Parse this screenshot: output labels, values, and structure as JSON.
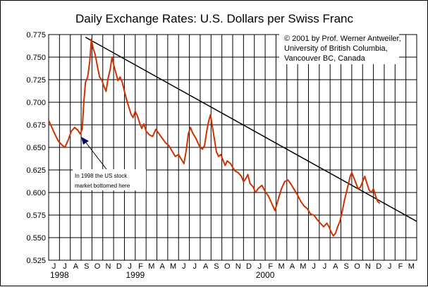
{
  "chart_data": {
    "type": "line",
    "title": "Daily Exchange Rates: U.S. Dollars per Swiss Franc",
    "credit": [
      "© 2001 by Prof. Werner Antweiler,",
      "University of British Columbia,",
      "Vancouver BC, Canada"
    ],
    "annotation": [
      "In 1998 the US stock",
      "market bottomed here"
    ],
    "ylim": [
      0.525,
      0.775
    ],
    "yticks": [
      "0.525",
      "0.550",
      "0.575",
      "0.600",
      "0.625",
      "0.650",
      "0.675",
      "0.700",
      "0.725",
      "0.750",
      "0.775"
    ],
    "month_labels": [
      "J",
      "J",
      "A",
      "S",
      "O",
      "N",
      "D",
      "J",
      "F",
      "M",
      "A",
      "M",
      "J",
      "J",
      "A",
      "S",
      "O",
      "N",
      "D",
      "J",
      "F",
      "M",
      "A",
      "M",
      "J",
      "J",
      "A",
      "S",
      "O",
      "N",
      "D",
      "J",
      "F",
      "M"
    ],
    "year_labels": [
      {
        "label": "1998",
        "month_index": 0
      },
      {
        "label": "1999",
        "month_index": 7
      },
      {
        "label": "2000",
        "month_index": 19
      }
    ],
    "series_color": "#cc3300",
    "trend_line": {
      "from": {
        "month": 3.4,
        "value": 0.772
      },
      "to": {
        "month": 34.0,
        "value": 0.568
      }
    },
    "series": [
      {
        "name": "USD per CHF",
        "points": [
          [
            0.0,
            0.68
          ],
          [
            0.3,
            0.672
          ],
          [
            0.6,
            0.664
          ],
          [
            0.9,
            0.657
          ],
          [
            1.2,
            0.653
          ],
          [
            1.5,
            0.65
          ],
          [
            1.8,
            0.658
          ],
          [
            2.1,
            0.668
          ],
          [
            2.4,
            0.672
          ],
          [
            2.7,
            0.669
          ],
          [
            2.9,
            0.665
          ],
          [
            3.1,
            0.67
          ],
          [
            3.25,
            0.7
          ],
          [
            3.4,
            0.722
          ],
          [
            3.6,
            0.728
          ],
          [
            3.8,
            0.745
          ],
          [
            3.95,
            0.77
          ],
          [
            4.1,
            0.76
          ],
          [
            4.3,
            0.753
          ],
          [
            4.5,
            0.74
          ],
          [
            4.7,
            0.728
          ],
          [
            4.9,
            0.725
          ],
          [
            5.1,
            0.718
          ],
          [
            5.3,
            0.712
          ],
          [
            5.5,
            0.727
          ],
          [
            5.7,
            0.737
          ],
          [
            5.85,
            0.75
          ],
          [
            6.0,
            0.742
          ],
          [
            6.2,
            0.733
          ],
          [
            6.4,
            0.724
          ],
          [
            6.6,
            0.728
          ],
          [
            6.8,
            0.722
          ],
          [
            7.0,
            0.712
          ],
          [
            7.2,
            0.703
          ],
          [
            7.4,
            0.695
          ],
          [
            7.6,
            0.687
          ],
          [
            7.8,
            0.683
          ],
          [
            8.0,
            0.69
          ],
          [
            8.2,
            0.685
          ],
          [
            8.4,
            0.677
          ],
          [
            8.6,
            0.671
          ],
          [
            8.8,
            0.676
          ],
          [
            9.0,
            0.668
          ],
          [
            9.3,
            0.664
          ],
          [
            9.6,
            0.662
          ],
          [
            9.9,
            0.67
          ],
          [
            10.2,
            0.665
          ],
          [
            10.5,
            0.66
          ],
          [
            10.8,
            0.655
          ],
          [
            11.1,
            0.652
          ],
          [
            11.4,
            0.646
          ],
          [
            11.7,
            0.64
          ],
          [
            12.0,
            0.642
          ],
          [
            12.3,
            0.636
          ],
          [
            12.5,
            0.632
          ],
          [
            12.7,
            0.646
          ],
          [
            12.9,
            0.665
          ],
          [
            13.1,
            0.672
          ],
          [
            13.3,
            0.666
          ],
          [
            13.6,
            0.66
          ],
          [
            13.9,
            0.652
          ],
          [
            14.2,
            0.648
          ],
          [
            14.4,
            0.652
          ],
          [
            14.6,
            0.668
          ],
          [
            14.8,
            0.68
          ],
          [
            14.95,
            0.686
          ],
          [
            15.1,
            0.675
          ],
          [
            15.3,
            0.66
          ],
          [
            15.5,
            0.645
          ],
          [
            15.7,
            0.64
          ],
          [
            15.9,
            0.642
          ],
          [
            16.1,
            0.636
          ],
          [
            16.3,
            0.63
          ],
          [
            16.5,
            0.635
          ],
          [
            16.8,
            0.632
          ],
          [
            17.0,
            0.628
          ],
          [
            17.2,
            0.624
          ],
          [
            17.5,
            0.622
          ],
          [
            17.8,
            0.618
          ],
          [
            18.0,
            0.612
          ],
          [
            18.2,
            0.615
          ],
          [
            18.4,
            0.62
          ],
          [
            18.6,
            0.61
          ],
          [
            18.9,
            0.606
          ],
          [
            19.1,
            0.6
          ],
          [
            19.4,
            0.605
          ],
          [
            19.7,
            0.608
          ],
          [
            20.0,
            0.601
          ],
          [
            20.3,
            0.596
          ],
          [
            20.6,
            0.588
          ],
          [
            20.9,
            0.58
          ],
          [
            21.2,
            0.592
          ],
          [
            21.5,
            0.604
          ],
          [
            21.8,
            0.612
          ],
          [
            22.1,
            0.614
          ],
          [
            22.4,
            0.609
          ],
          [
            22.7,
            0.603
          ],
          [
            23.0,
            0.597
          ],
          [
            23.3,
            0.59
          ],
          [
            23.6,
            0.585
          ],
          [
            23.9,
            0.582
          ],
          [
            24.2,
            0.576
          ],
          [
            24.5,
            0.575
          ],
          [
            24.8,
            0.57
          ],
          [
            25.1,
            0.566
          ],
          [
            25.4,
            0.562
          ],
          [
            25.7,
            0.566
          ],
          [
            25.9,
            0.562
          ],
          [
            26.1,
            0.556
          ],
          [
            26.3,
            0.552
          ],
          [
            26.5,
            0.555
          ],
          [
            26.7,
            0.562
          ],
          [
            26.9,
            0.568
          ],
          [
            27.1,
            0.578
          ],
          [
            27.3,
            0.59
          ],
          [
            27.5,
            0.6
          ],
          [
            27.7,
            0.61
          ],
          [
            27.85,
            0.618
          ],
          [
            28.0,
            0.622
          ],
          [
            28.2,
            0.616
          ],
          [
            28.4,
            0.61
          ],
          [
            28.6,
            0.604
          ],
          [
            28.8,
            0.606
          ],
          [
            29.0,
            0.612
          ],
          [
            29.2,
            0.618
          ],
          [
            29.4,
            0.61
          ],
          [
            29.6,
            0.603
          ],
          [
            29.8,
            0.6
          ],
          [
            30.0,
            0.604
          ],
          [
            30.2,
            0.596
          ],
          [
            30.4,
            0.59
          ],
          [
            30.6,
            0.588
          ]
        ]
      }
    ]
  }
}
